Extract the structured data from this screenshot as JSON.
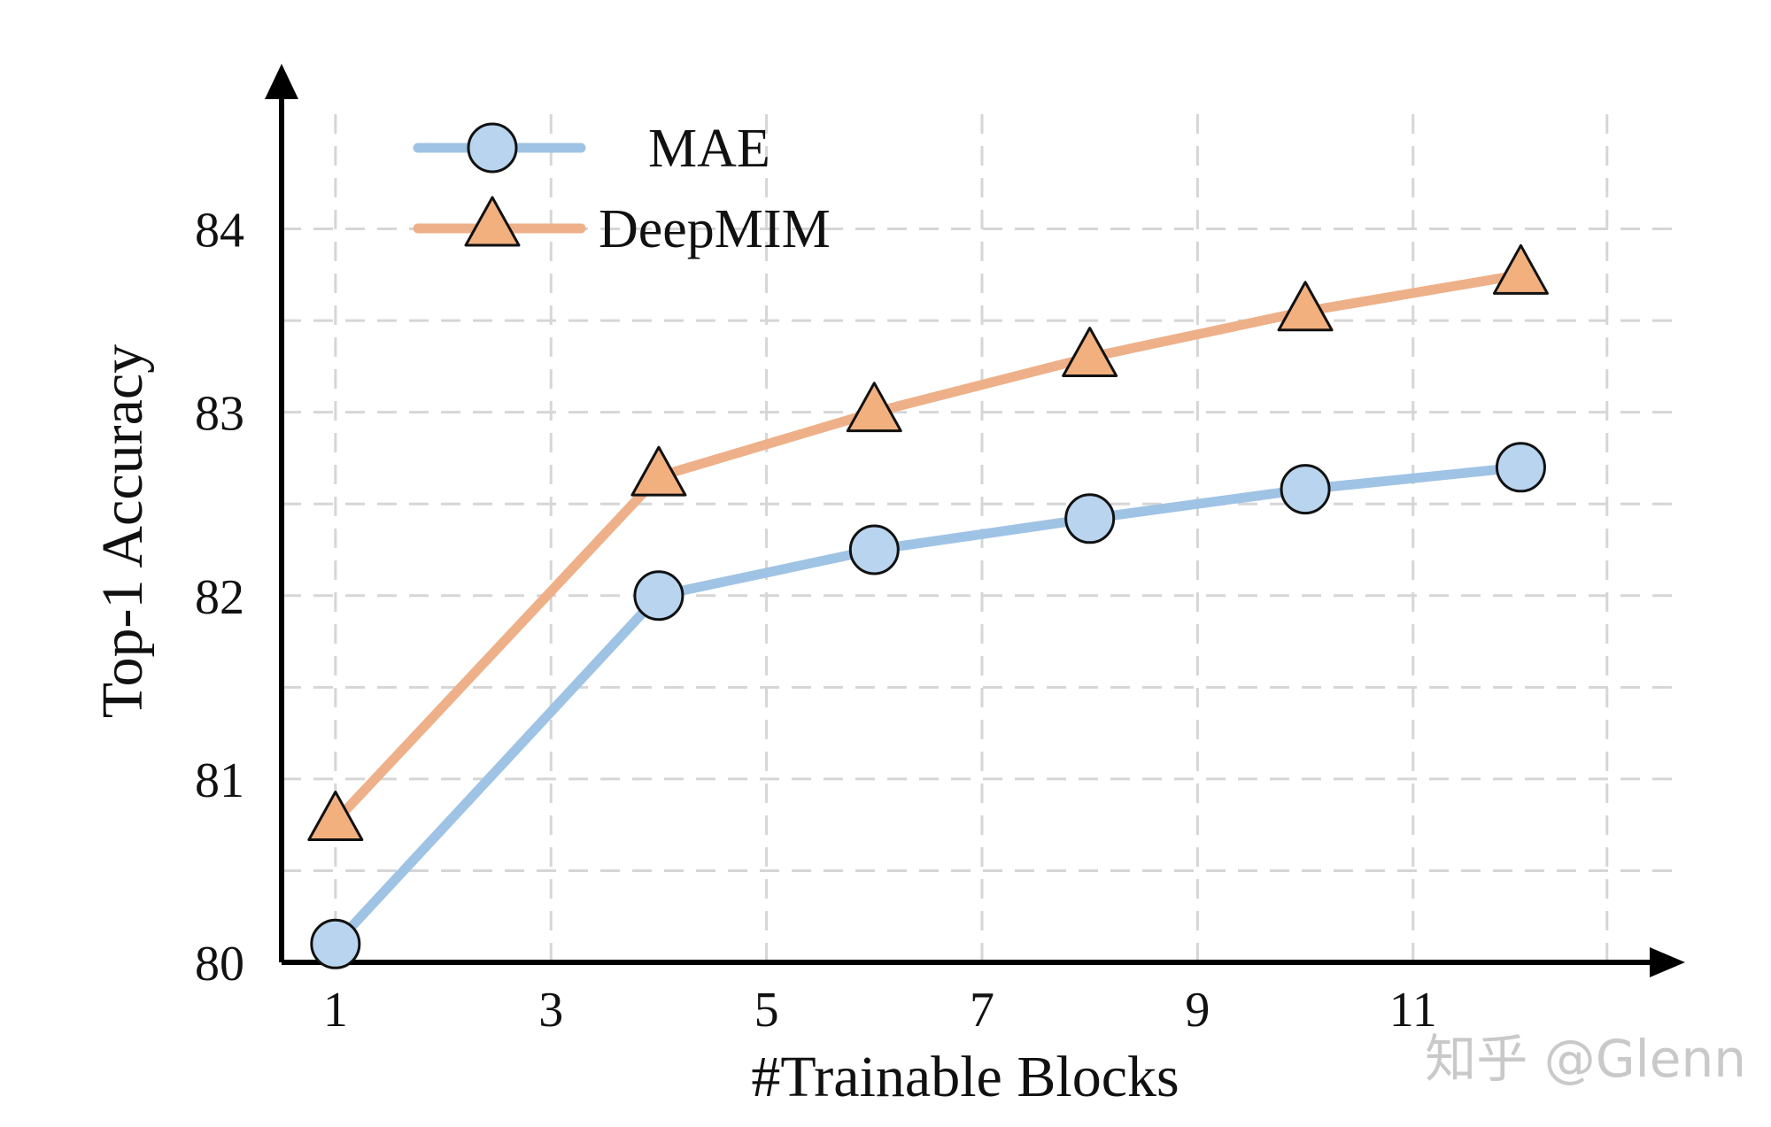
{
  "chart_data": {
    "type": "line",
    "xlabel": "#Trainable Blocks",
    "ylabel": "Top-1 Accuracy",
    "xlim": [
      0.5,
      13.5
    ],
    "ylim": [
      80,
      84.5
    ],
    "xticks": [
      1,
      3,
      5,
      7,
      9,
      11
    ],
    "yticks": [
      80,
      81,
      82,
      83,
      84
    ],
    "x_tick_labels": [
      "1",
      "3",
      "5",
      "7",
      "9",
      "11"
    ],
    "y_tick_labels": [
      "80",
      "81",
      "82",
      "83",
      "84"
    ],
    "grid": true,
    "legend_position": "top-left",
    "x": [
      1,
      4,
      6,
      8,
      10,
      12
    ],
    "series": [
      {
        "name": "MAE",
        "marker": "circle",
        "line_color": "#9fc3e4",
        "marker_fill": "#b8d4ef",
        "values": [
          80.1,
          82.0,
          82.25,
          82.42,
          82.58,
          82.7
        ]
      },
      {
        "name": "DeepMIM",
        "marker": "triangle",
        "line_color": "#eeb088",
        "marker_fill": "#f2b07f",
        "values": [
          80.77,
          82.65,
          83.0,
          83.3,
          83.55,
          83.75
        ]
      }
    ]
  },
  "watermark": "知乎 @Glenn"
}
